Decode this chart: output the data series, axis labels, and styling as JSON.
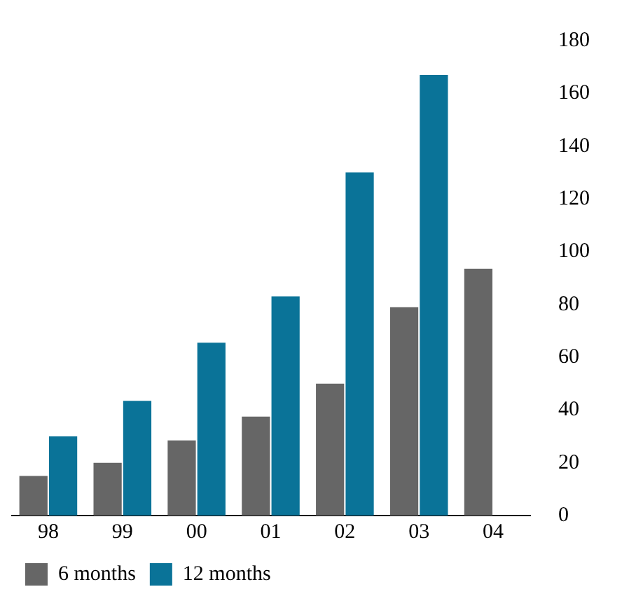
{
  "chart_data": {
    "type": "bar",
    "categories": [
      "98",
      "99",
      "00",
      "01",
      "02",
      "03",
      "04"
    ],
    "series": [
      {
        "name": "6 months",
        "color": "#666666",
        "values": [
          15,
          20,
          28.5,
          37.5,
          50,
          79,
          93.5
        ]
      },
      {
        "name": "12 months",
        "color": "#0a7398",
        "values": [
          30,
          43.5,
          65.5,
          83,
          130,
          167,
          null
        ]
      }
    ],
    "ylim": [
      0,
      180
    ],
    "yticks": [
      0,
      20,
      40,
      60,
      80,
      100,
      120,
      140,
      160,
      180
    ],
    "grid": false,
    "legend": "bottom"
  }
}
